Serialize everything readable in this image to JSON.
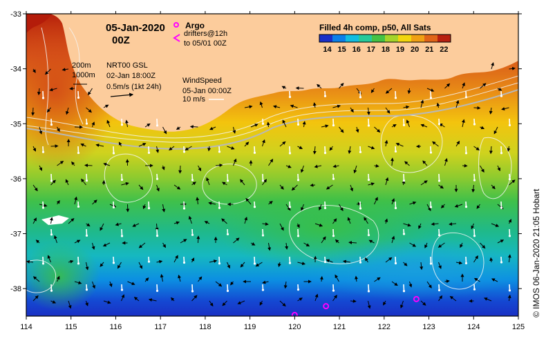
{
  "map": {
    "title_date": "05-Jan-2020",
    "title_time": "00Z",
    "product": "Filled 4h comp, p50, All Sats",
    "colorbar_ticks": [
      "14",
      "15",
      "16",
      "17",
      "18",
      "19",
      "20",
      "21",
      "22"
    ],
    "colorbar_colors": [
      "#1a2fc8",
      "#0b7fe8",
      "#12bde0",
      "#27c99a",
      "#45c245",
      "#a6d42a",
      "#f2d60e",
      "#f0a014",
      "#e06418",
      "#b82010"
    ],
    "legend": {
      "argo_label": "Argo",
      "drifters_label": "drifters@12h",
      "drifters_to": "to 05/01 00Z",
      "argo_color": "#ff00ff"
    },
    "contours": {
      "c1": "200m",
      "c2": "1000m"
    },
    "currents": {
      "source": "NRT00 GSL",
      "time": "02-Jan 18:00Z",
      "scale": "0.5m/s (1kt 24h)"
    },
    "wind": {
      "label": "WindSpeed",
      "time": "05-Jan 00:00Z",
      "scale": "10 m/s"
    },
    "credit": "© IMOS 06-Jan-2020 21:05 Hobart",
    "lon_ticks": [
      "114",
      "115",
      "116",
      "117",
      "118",
      "119",
      "120",
      "121",
      "122",
      "123",
      "124",
      "125"
    ],
    "lat_ticks": [
      "-33",
      "-34",
      "-35",
      "-36",
      "-37",
      "-38"
    ],
    "lon_range": [
      114,
      125
    ],
    "lat_range": [
      -38.5,
      -33
    ],
    "argo_floats": [
      {
        "lon": 120.7,
        "lat": -38.32
      },
      {
        "lon": 122.72,
        "lat": -38.19
      },
      {
        "lon": 120.0,
        "lat": -38.48
      }
    ],
    "colors": {
      "land": "#fccc9c",
      "frame": "#000000"
    }
  }
}
